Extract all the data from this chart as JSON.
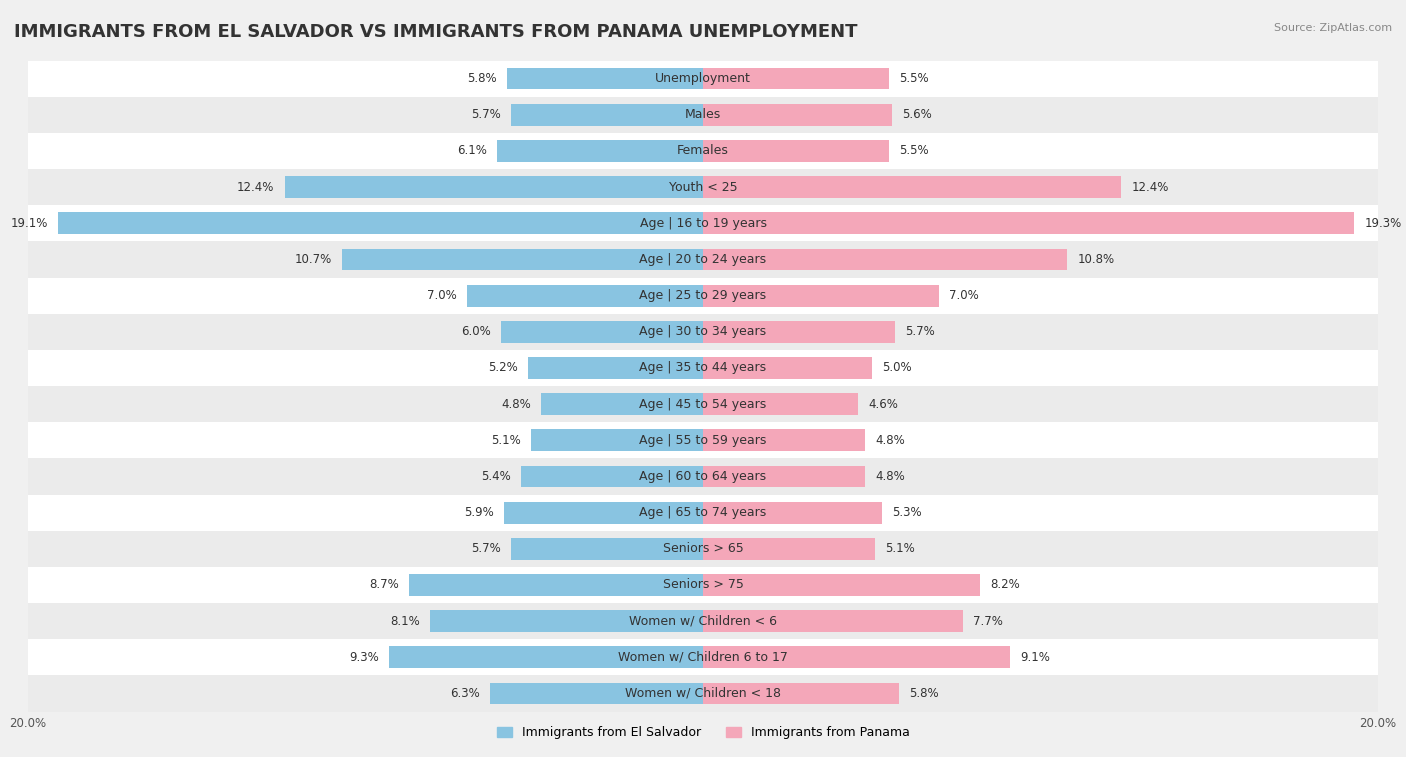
{
  "title": "IMMIGRANTS FROM EL SALVADOR VS IMMIGRANTS FROM PANAMA UNEMPLOYMENT",
  "source": "Source: ZipAtlas.com",
  "categories": [
    "Unemployment",
    "Males",
    "Females",
    "Youth < 25",
    "Age | 16 to 19 years",
    "Age | 20 to 24 years",
    "Age | 25 to 29 years",
    "Age | 30 to 34 years",
    "Age | 35 to 44 years",
    "Age | 45 to 54 years",
    "Age | 55 to 59 years",
    "Age | 60 to 64 years",
    "Age | 65 to 74 years",
    "Seniors > 65",
    "Seniors > 75",
    "Women w/ Children < 6",
    "Women w/ Children 6 to 17",
    "Women w/ Children < 18"
  ],
  "left_values": [
    5.8,
    5.7,
    6.1,
    12.4,
    19.1,
    10.7,
    7.0,
    6.0,
    5.2,
    4.8,
    5.1,
    5.4,
    5.9,
    5.7,
    8.7,
    8.1,
    9.3,
    6.3
  ],
  "right_values": [
    5.5,
    5.6,
    5.5,
    12.4,
    19.3,
    10.8,
    7.0,
    5.7,
    5.0,
    4.6,
    4.8,
    4.8,
    5.3,
    5.1,
    8.2,
    7.7,
    9.1,
    5.8
  ],
  "left_color": "#89c4e1",
  "right_color": "#f4a7b9",
  "axis_limit": 20.0,
  "left_label": "Immigrants from El Salvador",
  "right_label": "Immigrants from Panama",
  "bg_color": "#f0f0f0",
  "bar_bg_color": "#ffffff",
  "row_alt_color": "#e8e8e8",
  "title_fontsize": 13,
  "label_fontsize": 9,
  "value_fontsize": 8.5
}
